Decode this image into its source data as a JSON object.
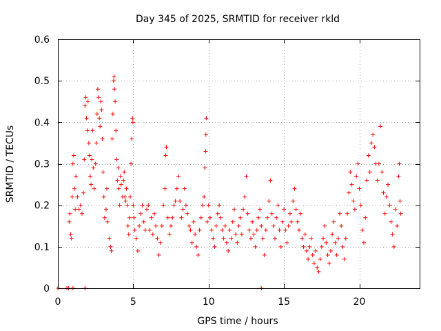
{
  "chart_data": {
    "type": "scatter",
    "title": "Day 345 of 2025, SRMTID for receiver rkld",
    "xlabel": "GPS time / hours",
    "ylabel": "SRMTID / TECUs",
    "xlim": [
      0,
      24
    ],
    "ylim": [
      0,
      0.6
    ],
    "x_ticks": [
      0,
      5,
      10,
      15,
      20
    ],
    "x_tick_labels": [
      "0",
      "5",
      "10",
      "15",
      "20"
    ],
    "y_ticks": [
      0,
      0.1,
      0.2,
      0.3,
      0.4,
      0.5,
      0.6
    ],
    "y_tick_labels": [
      "0",
      "0.1",
      "0.2",
      "0.3",
      "0.4",
      "0.5",
      "0.6"
    ],
    "grid": true,
    "marker": "+",
    "color": "#ff0000",
    "series": [
      {
        "name": "SRMTID",
        "points": [
          [
            0.0,
            0.0
          ],
          [
            0.6,
            0.0
          ],
          [
            0.7,
            0.0
          ],
          [
            1.0,
            0.0
          ],
          [
            1.8,
            0.0
          ],
          [
            13.5,
            0.0
          ],
          [
            0.75,
            0.16
          ],
          [
            0.8,
            0.18
          ],
          [
            0.85,
            0.13
          ],
          [
            0.9,
            0.12
          ],
          [
            0.95,
            0.22
          ],
          [
            1.0,
            0.3
          ],
          [
            1.05,
            0.32
          ],
          [
            1.1,
            0.24
          ],
          [
            1.15,
            0.19
          ],
          [
            1.2,
            0.27
          ],
          [
            1.3,
            0.22
          ],
          [
            1.4,
            0.19
          ],
          [
            1.5,
            0.2
          ],
          [
            1.6,
            0.18
          ],
          [
            1.7,
            0.23
          ],
          [
            1.75,
            0.31
          ],
          [
            1.8,
            0.44
          ],
          [
            1.85,
            0.46
          ],
          [
            1.9,
            0.41
          ],
          [
            1.95,
            0.38
          ],
          [
            2.0,
            0.45
          ],
          [
            2.05,
            0.35
          ],
          [
            2.1,
            0.32
          ],
          [
            2.15,
            0.27
          ],
          [
            2.2,
            0.25
          ],
          [
            2.25,
            0.31
          ],
          [
            2.3,
            0.38
          ],
          [
            2.35,
            0.29
          ],
          [
            2.4,
            0.24
          ],
          [
            2.5,
            0.3
          ],
          [
            2.55,
            0.35
          ],
          [
            2.6,
            0.42
          ],
          [
            2.65,
            0.48
          ],
          [
            2.7,
            0.46
          ],
          [
            2.75,
            0.41
          ],
          [
            2.8,
            0.39
          ],
          [
            2.85,
            0.45
          ],
          [
            2.9,
            0.43
          ],
          [
            2.95,
            0.36
          ],
          [
            3.0,
            0.28
          ],
          [
            3.05,
            0.22
          ],
          [
            3.1,
            0.17
          ],
          [
            3.2,
            0.19
          ],
          [
            3.25,
            0.24
          ],
          [
            3.3,
            0.16
          ],
          [
            3.4,
            0.12
          ],
          [
            3.5,
            0.1
          ],
          [
            3.55,
            0.09
          ],
          [
            3.6,
            0.36
          ],
          [
            3.65,
            0.42
          ],
          [
            3.7,
            0.5
          ],
          [
            3.72,
            0.51
          ],
          [
            3.75,
            0.48
          ],
          [
            3.8,
            0.45
          ],
          [
            3.85,
            0.38
          ],
          [
            3.9,
            0.31
          ],
          [
            3.95,
            0.26
          ],
          [
            4.0,
            0.29
          ],
          [
            4.05,
            0.24
          ],
          [
            4.1,
            0.2
          ],
          [
            4.15,
            0.27
          ],
          [
            4.2,
            0.25
          ],
          [
            4.3,
            0.22
          ],
          [
            4.35,
            0.26
          ],
          [
            4.4,
            0.28
          ],
          [
            4.45,
            0.22
          ],
          [
            4.5,
            0.21
          ],
          [
            4.55,
            0.24
          ],
          [
            4.6,
            0.2
          ],
          [
            4.65,
            0.15
          ],
          [
            4.7,
            0.13
          ],
          [
            4.75,
            0.17
          ],
          [
            4.8,
            0.22
          ],
          [
            4.85,
            0.3
          ],
          [
            4.9,
            0.36
          ],
          [
            4.95,
            0.41
          ],
          [
            4.98,
            0.4
          ],
          [
            5.0,
            0.2
          ],
          [
            5.05,
            0.17
          ],
          [
            5.1,
            0.14
          ],
          [
            5.2,
            0.12
          ],
          [
            5.3,
            0.09
          ],
          [
            5.4,
            0.15
          ],
          [
            5.5,
            0.18
          ],
          [
            5.6,
            0.2
          ],
          [
            5.7,
            0.16
          ],
          [
            5.8,
            0.14
          ],
          [
            5.9,
            0.19
          ],
          [
            6.0,
            0.2
          ],
          [
            6.1,
            0.14
          ],
          [
            6.2,
            0.17
          ],
          [
            6.3,
            0.13
          ],
          [
            6.4,
            0.18
          ],
          [
            6.5,
            0.15
          ],
          [
            6.6,
            0.12
          ],
          [
            6.7,
            0.08
          ],
          [
            6.8,
            0.11
          ],
          [
            6.9,
            0.15
          ],
          [
            7.0,
            0.2
          ],
          [
            7.1,
            0.24
          ],
          [
            7.15,
            0.32
          ],
          [
            7.2,
            0.34
          ],
          [
            7.3,
            0.17
          ],
          [
            7.4,
            0.13
          ],
          [
            7.5,
            0.15
          ],
          [
            7.6,
            0.17
          ],
          [
            7.7,
            0.2
          ],
          [
            7.8,
            0.21
          ],
          [
            7.9,
            0.24
          ],
          [
            8.0,
            0.27
          ],
          [
            8.1,
            0.21
          ],
          [
            8.2,
            0.17
          ],
          [
            8.3,
            0.19
          ],
          [
            8.4,
            0.24
          ],
          [
            8.5,
            0.2
          ],
          [
            8.6,
            0.18
          ],
          [
            8.7,
            0.15
          ],
          [
            8.8,
            0.14
          ],
          [
            8.9,
            0.11
          ],
          [
            9.0,
            0.16
          ],
          [
            9.1,
            0.13
          ],
          [
            9.2,
            0.1
          ],
          [
            9.3,
            0.08
          ],
          [
            9.4,
            0.14
          ],
          [
            9.5,
            0.17
          ],
          [
            9.6,
            0.2
          ],
          [
            9.7,
            0.22
          ],
          [
            9.75,
            0.29
          ],
          [
            9.8,
            0.33
          ],
          [
            9.82,
            0.37
          ],
          [
            9.85,
            0.41
          ],
          [
            9.9,
            0.16
          ],
          [
            10.0,
            0.2
          ],
          [
            10.1,
            0.17
          ],
          [
            10.2,
            0.14
          ],
          [
            10.3,
            0.12
          ],
          [
            10.4,
            0.1
          ],
          [
            10.5,
            0.15
          ],
          [
            10.6,
            0.18
          ],
          [
            10.7,
            0.2
          ],
          [
            10.8,
            0.17
          ],
          [
            10.9,
            0.14
          ],
          [
            11.0,
            0.12
          ],
          [
            11.1,
            0.15
          ],
          [
            11.2,
            0.11
          ],
          [
            11.3,
            0.09
          ],
          [
            11.4,
            0.14
          ],
          [
            11.5,
            0.12
          ],
          [
            11.6,
            0.16
          ],
          [
            11.7,
            0.19
          ],
          [
            11.8,
            0.13
          ],
          [
            11.9,
            0.11
          ],
          [
            12.0,
            0.15
          ],
          [
            12.1,
            0.17
          ],
          [
            12.2,
            0.13
          ],
          [
            12.3,
            0.19
          ],
          [
            12.4,
            0.22
          ],
          [
            12.5,
            0.27
          ],
          [
            12.6,
            0.18
          ],
          [
            12.7,
            0.14
          ],
          [
            12.8,
            0.12
          ],
          [
            12.9,
            0.16
          ],
          [
            13.0,
            0.13
          ],
          [
            13.1,
            0.1
          ],
          [
            13.2,
            0.14
          ],
          [
            13.3,
            0.17
          ],
          [
            13.4,
            0.19
          ],
          [
            13.5,
            0.15
          ],
          [
            13.6,
            0.12
          ],
          [
            13.7,
            0.08
          ],
          [
            13.8,
            0.14
          ],
          [
            13.9,
            0.17
          ],
          [
            14.0,
            0.21
          ],
          [
            14.1,
            0.26
          ],
          [
            14.2,
            0.18
          ],
          [
            14.3,
            0.15
          ],
          [
            14.4,
            0.12
          ],
          [
            14.5,
            0.17
          ],
          [
            14.6,
            0.2
          ],
          [
            14.7,
            0.14
          ],
          [
            14.8,
            0.1
          ],
          [
            14.9,
            0.16
          ],
          [
            15.0,
            0.19
          ],
          [
            15.1,
            0.14
          ],
          [
            15.2,
            0.11
          ],
          [
            15.3,
            0.15
          ],
          [
            15.4,
            0.18
          ],
          [
            15.5,
            0.16
          ],
          [
            15.6,
            0.21
          ],
          [
            15.7,
            0.24
          ],
          [
            15.8,
            0.19
          ],
          [
            15.9,
            0.16
          ],
          [
            16.0,
            0.14
          ],
          [
            16.1,
            0.18
          ],
          [
            16.2,
            0.12
          ],
          [
            16.3,
            0.1
          ],
          [
            16.4,
            0.13
          ],
          [
            16.5,
            0.09
          ],
          [
            16.6,
            0.07
          ],
          [
            16.7,
            0.1
          ],
          [
            16.8,
            0.12
          ],
          [
            16.9,
            0.08
          ],
          [
            17.0,
            0.06
          ],
          [
            17.1,
            0.09
          ],
          [
            17.2,
            0.05
          ],
          [
            17.3,
            0.04
          ],
          [
            17.4,
            0.07
          ],
          [
            17.5,
            0.1
          ],
          [
            17.6,
            0.12
          ],
          [
            17.7,
            0.15
          ],
          [
            17.8,
            0.11
          ],
          [
            17.9,
            0.08
          ],
          [
            18.0,
            0.06
          ],
          [
            18.1,
            0.09
          ],
          [
            18.2,
            0.13
          ],
          [
            18.3,
            0.16
          ],
          [
            18.4,
            0.11
          ],
          [
            18.5,
            0.08
          ],
          [
            18.6,
            0.12
          ],
          [
            18.7,
            0.18
          ],
          [
            18.8,
            0.15
          ],
          [
            18.9,
            0.1
          ],
          [
            19.0,
            0.07
          ],
          [
            19.1,
            0.12
          ],
          [
            19.2,
            0.18
          ],
          [
            19.3,
            0.23
          ],
          [
            19.4,
            0.28
          ],
          [
            19.5,
            0.25
          ],
          [
            19.6,
            0.21
          ],
          [
            19.7,
            0.19
          ],
          [
            19.8,
            0.27
          ],
          [
            19.9,
            0.3
          ],
          [
            20.0,
            0.24
          ],
          [
            20.1,
            0.2
          ],
          [
            20.2,
            0.14
          ],
          [
            20.3,
            0.11
          ],
          [
            20.4,
            0.17
          ],
          [
            20.5,
            0.26
          ],
          [
            20.6,
            0.32
          ],
          [
            20.7,
            0.28
          ],
          [
            20.8,
            0.35
          ],
          [
            20.9,
            0.37
          ],
          [
            21.0,
            0.34
          ],
          [
            21.1,
            0.3
          ],
          [
            21.2,
            0.26
          ],
          [
            21.3,
            0.3
          ],
          [
            21.4,
            0.39
          ],
          [
            21.5,
            0.28
          ],
          [
            21.6,
            0.23
          ],
          [
            21.7,
            0.18
          ],
          [
            21.8,
            0.22
          ],
          [
            21.9,
            0.25
          ],
          [
            22.0,
            0.2
          ],
          [
            22.1,
            0.16
          ],
          [
            22.2,
            0.13
          ],
          [
            22.3,
            0.1
          ],
          [
            22.4,
            0.19
          ],
          [
            22.5,
            0.15
          ],
          [
            22.6,
            0.27
          ],
          [
            22.65,
            0.3
          ],
          [
            22.7,
            0.21
          ],
          [
            22.75,
            0.18
          ]
        ]
      }
    ]
  }
}
